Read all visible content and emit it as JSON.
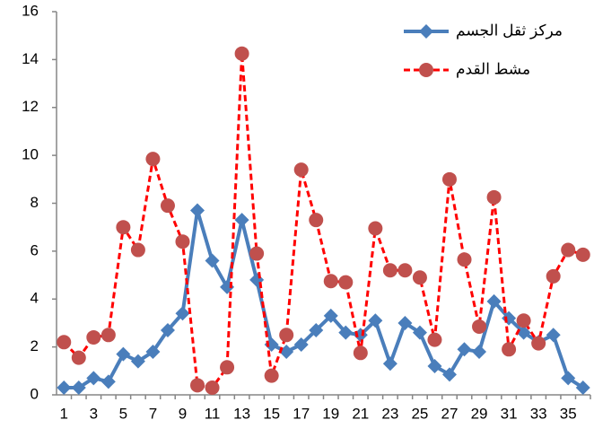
{
  "chart_data": {
    "type": "line",
    "categories": [
      1,
      null,
      3,
      null,
      5,
      null,
      7,
      null,
      9,
      null,
      11,
      null,
      13,
      null,
      15,
      null,
      17,
      null,
      19,
      null,
      21,
      null,
      23,
      null,
      25,
      null,
      27,
      null,
      29,
      null,
      31,
      null,
      33,
      null,
      35,
      null
    ],
    "series": [
      {
        "name": "مركز ثقل الجسم",
        "color": "#4a7ebb",
        "marker": "diamond",
        "dash": false,
        "values": [
          0.3,
          0.3,
          0.7,
          0.55,
          1.7,
          1.4,
          1.8,
          2.7,
          3.4,
          7.7,
          5.6,
          4.5,
          7.3,
          4.8,
          2.1,
          1.8,
          2.1,
          2.7,
          3.3,
          2.6,
          2.5,
          3.1,
          1.3,
          3.0,
          2.6,
          1.2,
          0.85,
          1.9,
          1.8,
          3.9,
          3.2,
          2.6,
          2.2,
          2.5,
          0.7,
          0.3
        ]
      },
      {
        "name": "مشط القدم",
        "color": "#ff0000",
        "marker": "circle",
        "marker_color": "#c0504d",
        "dash": true,
        "values": [
          2.2,
          1.55,
          2.4,
          2.5,
          7.0,
          6.05,
          9.85,
          7.9,
          6.4,
          0.4,
          0.3,
          1.15,
          14.25,
          5.9,
          0.8,
          2.5,
          9.4,
          7.3,
          4.75,
          4.7,
          1.75,
          6.95,
          5.2,
          5.2,
          4.9,
          2.3,
          9.0,
          5.65,
          2.85,
          8.25,
          1.9,
          3.1,
          2.15,
          4.95,
          6.05,
          5.85
        ]
      }
    ],
    "ylim": [
      0,
      16
    ],
    "yticks": [
      0,
      2,
      4,
      6,
      8,
      10,
      12,
      14,
      16
    ],
    "grid": false,
    "legend": "upper right"
  }
}
